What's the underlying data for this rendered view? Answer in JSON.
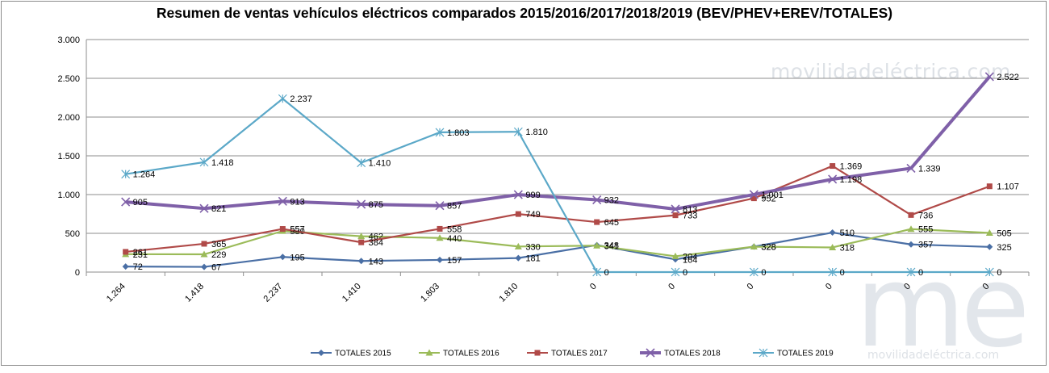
{
  "title": "Resumen de ventas vehículos eléctricos comparados 2015/2016/2017/2018/2019  (BEV/PHEV+EREV/TOTALES)",
  "watermark": "movilidadeléctrica.com",
  "watermark_small": "movilidadeléctrica.com",
  "logo": "me",
  "colors": {
    "TOTALES 2015": "#4a6fa5",
    "TOTALES 2016": "#9bbb59",
    "TOTALES 2017": "#b04a48",
    "TOTALES 2018": "#7f60a8",
    "TOTALES 2019": "#5ba8c8"
  },
  "chart_data": {
    "type": "line",
    "title": "Resumen de ventas vehículos eléctricos comparados 2015/2016/2017/2018/2019  (BEV/PHEV+EREV/TOTALES)",
    "categories": [
      "1.264",
      "1.418",
      "2.237",
      "1.410",
      "1.803",
      "1.810",
      "0",
      "0",
      "0",
      "0",
      "0",
      "0"
    ],
    "ylim": [
      0,
      3000
    ],
    "yticks": [
      0,
      500,
      1000,
      1500,
      2000,
      2500,
      3000
    ],
    "ytick_labels": [
      "0",
      "500",
      "1.000",
      "1.500",
      "2.000",
      "2.500",
      "3.000"
    ],
    "grid": true,
    "legend": "bottom",
    "series": [
      {
        "name": "TOTALES 2015",
        "marker": "diamond",
        "values": [
          72,
          67,
          195,
          143,
          157,
          181,
          348,
          164,
          328,
          510,
          357,
          325
        ],
        "labels": [
          "72",
          "67",
          "195",
          "143",
          "157",
          "181",
          "348",
          "164",
          "328",
          "510",
          "357",
          "325"
        ]
      },
      {
        "name": "TOTALES 2016",
        "marker": "triangle",
        "values": [
          231,
          229,
          530,
          462,
          440,
          330,
          341,
          204,
          328,
          318,
          555,
          505
        ],
        "labels": [
          "231",
          "229",
          "530",
          "462",
          "440",
          "330",
          "341",
          "204",
          "328",
          "318",
          "555",
          "505"
        ]
      },
      {
        "name": "TOTALES 2017",
        "marker": "square",
        "values": [
          261,
          365,
          557,
          384,
          558,
          749,
          645,
          733,
          952,
          1369,
          736,
          1107
        ],
        "labels": [
          "261",
          "365",
          "557",
          "384",
          "558",
          "749",
          "645",
          "733",
          "952",
          "1.369",
          "736",
          "1.107"
        ]
      },
      {
        "name": "TOTALES 2018",
        "marker": "x",
        "values": [
          905,
          821,
          913,
          875,
          857,
          999,
          932,
          813,
          1001,
          1198,
          1339,
          2522
        ],
        "labels": [
          "905",
          "821",
          "913",
          "875",
          "857",
          "999",
          "932",
          "813",
          "1.001",
          "1.198",
          "1.339",
          "2.522"
        ]
      },
      {
        "name": "TOTALES 2019",
        "marker": "star",
        "values": [
          1264,
          1418,
          2237,
          1410,
          1803,
          1810,
          0,
          0,
          0,
          0,
          0,
          0
        ],
        "labels": [
          "1.264",
          "1.418",
          "2.237",
          "1.410",
          "1.803",
          "1.810",
          "0",
          "0",
          "0",
          "0",
          "0",
          "0"
        ]
      }
    ]
  }
}
